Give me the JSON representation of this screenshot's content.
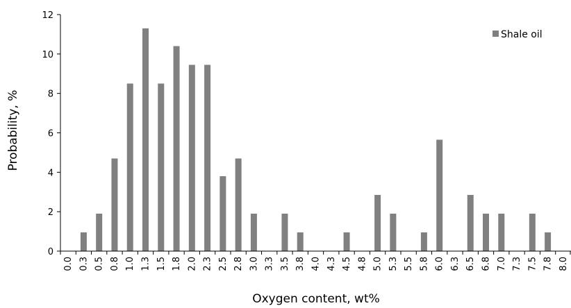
{
  "chart_data": {
    "type": "bar",
    "title": "",
    "xlabel": "Oxygen content, wt%",
    "ylabel": "Probability, %",
    "ylim": [
      0,
      12
    ],
    "yticks": [
      "0",
      "2",
      "4",
      "6",
      "8",
      "10",
      "12"
    ],
    "grid": false,
    "legend_position": "top-right",
    "bar_color": "#808080",
    "categories": [
      "0.0",
      "0.3",
      "0.5",
      "0.8",
      "1.0",
      "1.3",
      "1.5",
      "1.8",
      "2.0",
      "2.3",
      "2.5",
      "2.8",
      "3.0",
      "3.3",
      "3.5",
      "3.8",
      "4.0",
      "4.3",
      "4.5",
      "4.8",
      "5.0",
      "5.3",
      "5.5",
      "5.8",
      "6.0",
      "6.3",
      "6.5",
      "6.8",
      "7.0",
      "7.3",
      "7.5",
      "7.8",
      "8.0"
    ],
    "series": [
      {
        "name": "Shale oil",
        "values": [
          0,
          0.95,
          1.9,
          4.7,
          8.5,
          11.3,
          8.5,
          10.4,
          9.45,
          9.45,
          3.8,
          4.7,
          1.9,
          0,
          1.9,
          0.95,
          0,
          0,
          0.95,
          0,
          2.85,
          1.9,
          0,
          0.95,
          5.65,
          0,
          2.85,
          1.9,
          1.9,
          0,
          1.9,
          0.95,
          0
        ]
      }
    ]
  }
}
